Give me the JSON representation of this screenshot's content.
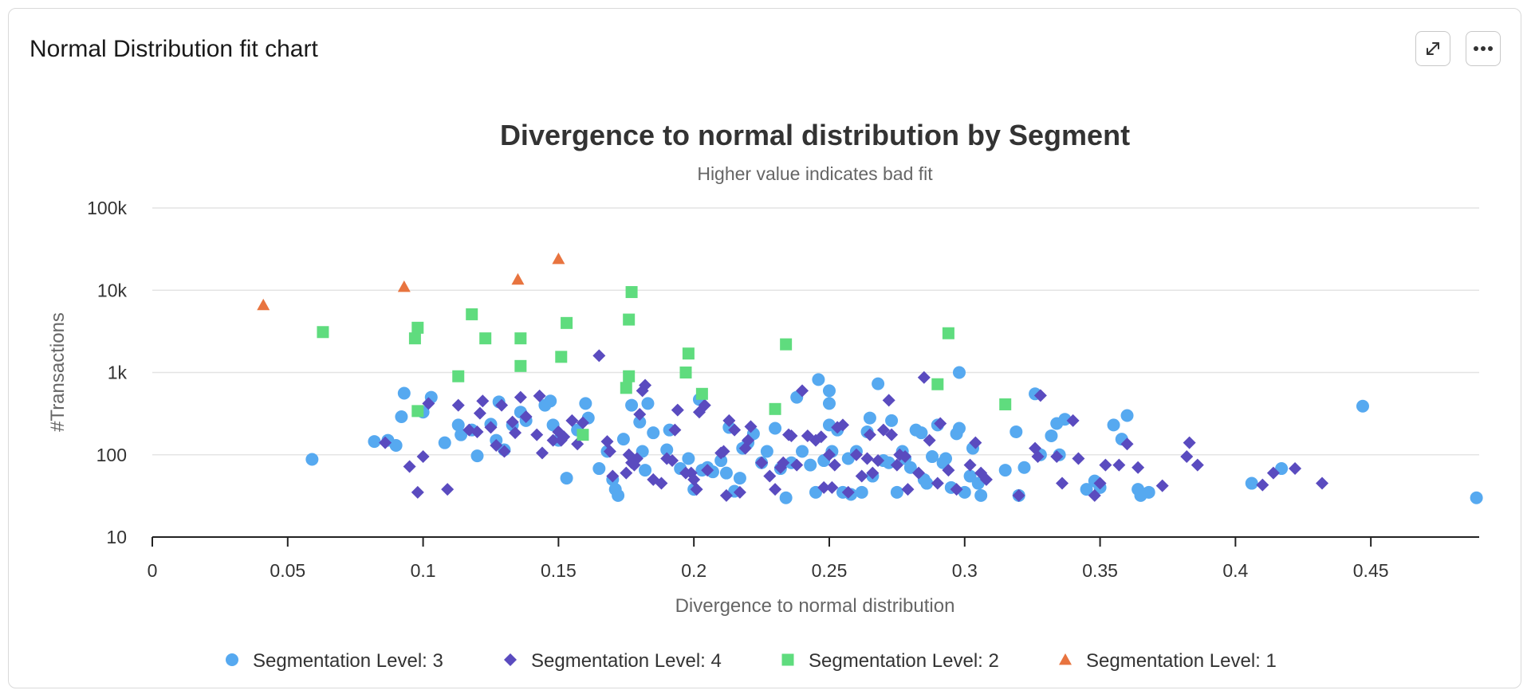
{
  "card": {
    "title": "Normal Distribution fit chart",
    "expand_icon": "expand-icon",
    "more_icon": "more-icon"
  },
  "colors": {
    "level3": "#56a9f0",
    "level4": "#5a4bbf",
    "level2": "#5fdc7e",
    "level1": "#e8743f",
    "grid": "#e4e4e4",
    "axis": "#222222"
  },
  "chart_data": {
    "type": "scatter",
    "title": "Divergence to normal distribution by Segment",
    "subtitle": "Higher value indicates bad fit",
    "xlabel": "Divergence to normal distribution",
    "ylabel": "#Transactions",
    "xlim": [
      0,
      0.49
    ],
    "ylim": [
      10,
      100000
    ],
    "yscale": "log",
    "grid": true,
    "legend_position": "bottom",
    "x_ticks": [
      {
        "value": 0,
        "label": "0"
      },
      {
        "value": 0.05,
        "label": "0.05"
      },
      {
        "value": 0.1,
        "label": "0.1"
      },
      {
        "value": 0.15,
        "label": "0.15"
      },
      {
        "value": 0.2,
        "label": "0.2"
      },
      {
        "value": 0.25,
        "label": "0.25"
      },
      {
        "value": 0.3,
        "label": "0.3"
      },
      {
        "value": 0.35,
        "label": "0.35"
      },
      {
        "value": 0.4,
        "label": "0.4"
      },
      {
        "value": 0.45,
        "label": "0.45"
      }
    ],
    "y_ticks": [
      {
        "value": 10,
        "label": "10"
      },
      {
        "value": 100,
        "label": "100"
      },
      {
        "value": 1000,
        "label": "1k"
      },
      {
        "value": 10000,
        "label": "10k"
      },
      {
        "value": 100000,
        "label": "100k"
      }
    ],
    "series": [
      {
        "name": "Segmentation Level: 3",
        "marker": "circle",
        "color": "#56a9f0",
        "points": [
          [
            0.059,
            88
          ],
          [
            0.082,
            145
          ],
          [
            0.087,
            150
          ],
          [
            0.09,
            130
          ],
          [
            0.092,
            290
          ],
          [
            0.093,
            560
          ],
          [
            0.1,
            330
          ],
          [
            0.103,
            500
          ],
          [
            0.108,
            140
          ],
          [
            0.113,
            230
          ],
          [
            0.114,
            175
          ],
          [
            0.118,
            200
          ],
          [
            0.12,
            97
          ],
          [
            0.125,
            235
          ],
          [
            0.127,
            150
          ],
          [
            0.128,
            440
          ],
          [
            0.13,
            115
          ],
          [
            0.133,
            230
          ],
          [
            0.136,
            330
          ],
          [
            0.138,
            260
          ],
          [
            0.145,
            400
          ],
          [
            0.147,
            450
          ],
          [
            0.148,
            230
          ],
          [
            0.15,
            150
          ],
          [
            0.153,
            52
          ],
          [
            0.157,
            200
          ],
          [
            0.16,
            420
          ],
          [
            0.161,
            280
          ],
          [
            0.165,
            68
          ],
          [
            0.168,
            110
          ],
          [
            0.17,
            50
          ],
          [
            0.171,
            38
          ],
          [
            0.172,
            32
          ],
          [
            0.174,
            155
          ],
          [
            0.177,
            400
          ],
          [
            0.18,
            250
          ],
          [
            0.181,
            110
          ],
          [
            0.182,
            65
          ],
          [
            0.183,
            420
          ],
          [
            0.185,
            185
          ],
          [
            0.19,
            115
          ],
          [
            0.191,
            200
          ],
          [
            0.195,
            68
          ],
          [
            0.198,
            90
          ],
          [
            0.2,
            38
          ],
          [
            0.202,
            470
          ],
          [
            0.203,
            65
          ],
          [
            0.205,
            70
          ],
          [
            0.207,
            62
          ],
          [
            0.21,
            85
          ],
          [
            0.212,
            60
          ],
          [
            0.213,
            215
          ],
          [
            0.215,
            36
          ],
          [
            0.217,
            52
          ],
          [
            0.218,
            120
          ],
          [
            0.22,
            140
          ],
          [
            0.222,
            180
          ],
          [
            0.225,
            80
          ],
          [
            0.227,
            110
          ],
          [
            0.23,
            210
          ],
          [
            0.232,
            68
          ],
          [
            0.234,
            30
          ],
          [
            0.236,
            80
          ],
          [
            0.238,
            500
          ],
          [
            0.24,
            110
          ],
          [
            0.243,
            75
          ],
          [
            0.245,
            35
          ],
          [
            0.246,
            820
          ],
          [
            0.248,
            85
          ],
          [
            0.25,
            600
          ],
          [
            0.25,
            420
          ],
          [
            0.25,
            230
          ],
          [
            0.251,
            110
          ],
          [
            0.253,
            200
          ],
          [
            0.255,
            35
          ],
          [
            0.257,
            90
          ],
          [
            0.258,
            33
          ],
          [
            0.26,
            110
          ],
          [
            0.262,
            35
          ],
          [
            0.264,
            190
          ],
          [
            0.265,
            280
          ],
          [
            0.266,
            55
          ],
          [
            0.268,
            730
          ],
          [
            0.27,
            85
          ],
          [
            0.272,
            80
          ],
          [
            0.273,
            260
          ],
          [
            0.275,
            35
          ],
          [
            0.277,
            110
          ],
          [
            0.278,
            90
          ],
          [
            0.28,
            70
          ],
          [
            0.282,
            200
          ],
          [
            0.284,
            185
          ],
          [
            0.285,
            50
          ],
          [
            0.286,
            45
          ],
          [
            0.288,
            95
          ],
          [
            0.29,
            230
          ],
          [
            0.292,
            80
          ],
          [
            0.293,
            90
          ],
          [
            0.295,
            40
          ],
          [
            0.297,
            180
          ],
          [
            0.298,
            1000
          ],
          [
            0.298,
            210
          ],
          [
            0.3,
            35
          ],
          [
            0.302,
            55
          ],
          [
            0.303,
            120
          ],
          [
            0.305,
            45
          ],
          [
            0.306,
            32
          ],
          [
            0.315,
            65
          ],
          [
            0.319,
            190
          ],
          [
            0.32,
            32
          ],
          [
            0.322,
            70
          ],
          [
            0.326,
            550
          ],
          [
            0.328,
            100
          ],
          [
            0.332,
            170
          ],
          [
            0.334,
            240
          ],
          [
            0.335,
            100
          ],
          [
            0.337,
            270
          ],
          [
            0.345,
            38
          ],
          [
            0.348,
            48
          ],
          [
            0.35,
            40
          ],
          [
            0.355,
            230
          ],
          [
            0.358,
            155
          ],
          [
            0.36,
            300
          ],
          [
            0.364,
            38
          ],
          [
            0.365,
            32
          ],
          [
            0.368,
            35
          ],
          [
            0.406,
            45
          ],
          [
            0.417,
            68
          ],
          [
            0.447,
            390
          ],
          [
            0.489,
            30
          ]
        ]
      },
      {
        "name": "Segmentation Level: 4",
        "marker": "diamond",
        "color": "#5a4bbf",
        "points": [
          [
            0.086,
            140
          ],
          [
            0.095,
            72
          ],
          [
            0.098,
            35
          ],
          [
            0.1,
            95
          ],
          [
            0.102,
            420
          ],
          [
            0.109,
            38
          ],
          [
            0.113,
            400
          ],
          [
            0.117,
            200
          ],
          [
            0.12,
            190
          ],
          [
            0.121,
            320
          ],
          [
            0.122,
            450
          ],
          [
            0.125,
            215
          ],
          [
            0.127,
            130
          ],
          [
            0.129,
            400
          ],
          [
            0.13,
            110
          ],
          [
            0.133,
            250
          ],
          [
            0.134,
            185
          ],
          [
            0.136,
            500
          ],
          [
            0.138,
            290
          ],
          [
            0.142,
            175
          ],
          [
            0.143,
            520
          ],
          [
            0.144,
            105
          ],
          [
            0.148,
            150
          ],
          [
            0.15,
            190
          ],
          [
            0.151,
            150
          ],
          [
            0.152,
            165
          ],
          [
            0.155,
            260
          ],
          [
            0.157,
            135
          ],
          [
            0.159,
            245
          ],
          [
            0.165,
            1600
          ],
          [
            0.168,
            145
          ],
          [
            0.169,
            110
          ],
          [
            0.17,
            55
          ],
          [
            0.175,
            60
          ],
          [
            0.176,
            100
          ],
          [
            0.177,
            80
          ],
          [
            0.178,
            75
          ],
          [
            0.179,
            90
          ],
          [
            0.18,
            310
          ],
          [
            0.181,
            600
          ],
          [
            0.182,
            700
          ],
          [
            0.185,
            50
          ],
          [
            0.188,
            45
          ],
          [
            0.19,
            90
          ],
          [
            0.192,
            85
          ],
          [
            0.193,
            200
          ],
          [
            0.194,
            350
          ],
          [
            0.197,
            60
          ],
          [
            0.199,
            60
          ],
          [
            0.2,
            50
          ],
          [
            0.201,
            38
          ],
          [
            0.202,
            330
          ],
          [
            0.204,
            400
          ],
          [
            0.205,
            65
          ],
          [
            0.21,
            105
          ],
          [
            0.211,
            110
          ],
          [
            0.212,
            32
          ],
          [
            0.213,
            260
          ],
          [
            0.215,
            200
          ],
          [
            0.217,
            35
          ],
          [
            0.219,
            120
          ],
          [
            0.22,
            150
          ],
          [
            0.221,
            220
          ],
          [
            0.225,
            80
          ],
          [
            0.228,
            55
          ],
          [
            0.23,
            38
          ],
          [
            0.232,
            70
          ],
          [
            0.233,
            80
          ],
          [
            0.235,
            175
          ],
          [
            0.236,
            170
          ],
          [
            0.238,
            75
          ],
          [
            0.24,
            600
          ],
          [
            0.242,
            170
          ],
          [
            0.245,
            150
          ],
          [
            0.247,
            165
          ],
          [
            0.248,
            40
          ],
          [
            0.25,
            100
          ],
          [
            0.251,
            40
          ],
          [
            0.252,
            75
          ],
          [
            0.253,
            215
          ],
          [
            0.255,
            230
          ],
          [
            0.257,
            35
          ],
          [
            0.26,
            100
          ],
          [
            0.262,
            55
          ],
          [
            0.264,
            90
          ],
          [
            0.265,
            175
          ],
          [
            0.266,
            60
          ],
          [
            0.268,
            85
          ],
          [
            0.27,
            200
          ],
          [
            0.272,
            460
          ],
          [
            0.273,
            175
          ],
          [
            0.275,
            75
          ],
          [
            0.276,
            100
          ],
          [
            0.278,
            95
          ],
          [
            0.279,
            38
          ],
          [
            0.283,
            60
          ],
          [
            0.285,
            870
          ],
          [
            0.287,
            150
          ],
          [
            0.29,
            45
          ],
          [
            0.291,
            240
          ],
          [
            0.294,
            65
          ],
          [
            0.297,
            38
          ],
          [
            0.302,
            75
          ],
          [
            0.304,
            140
          ],
          [
            0.306,
            60
          ],
          [
            0.308,
            50
          ],
          [
            0.32,
            32
          ],
          [
            0.326,
            120
          ],
          [
            0.327,
            95
          ],
          [
            0.328,
            525
          ],
          [
            0.334,
            95
          ],
          [
            0.336,
            45
          ],
          [
            0.34,
            260
          ],
          [
            0.342,
            90
          ],
          [
            0.348,
            32
          ],
          [
            0.35,
            45
          ],
          [
            0.352,
            75
          ],
          [
            0.357,
            75
          ],
          [
            0.36,
            135
          ],
          [
            0.364,
            70
          ],
          [
            0.373,
            42
          ],
          [
            0.382,
            95
          ],
          [
            0.383,
            140
          ],
          [
            0.386,
            75
          ],
          [
            0.41,
            43
          ],
          [
            0.414,
            60
          ],
          [
            0.422,
            68
          ],
          [
            0.432,
            45
          ]
        ]
      },
      {
        "name": "Segmentation Level: 2",
        "marker": "square",
        "color": "#5fdc7e",
        "points": [
          [
            0.063,
            3100
          ],
          [
            0.097,
            2600
          ],
          [
            0.098,
            3500
          ],
          [
            0.098,
            340
          ],
          [
            0.113,
            900
          ],
          [
            0.118,
            5100
          ],
          [
            0.123,
            2600
          ],
          [
            0.136,
            2600
          ],
          [
            0.136,
            1200
          ],
          [
            0.151,
            1550
          ],
          [
            0.153,
            4000
          ],
          [
            0.159,
            175
          ],
          [
            0.175,
            650
          ],
          [
            0.176,
            900
          ],
          [
            0.176,
            4400
          ],
          [
            0.177,
            9500
          ],
          [
            0.197,
            1000
          ],
          [
            0.198,
            1700
          ],
          [
            0.203,
            550
          ],
          [
            0.23,
            360
          ],
          [
            0.234,
            2200
          ],
          [
            0.29,
            720
          ],
          [
            0.294,
            3000
          ],
          [
            0.315,
            410
          ]
        ]
      },
      {
        "name": "Segmentation Level: 1",
        "marker": "triangle",
        "color": "#e8743f",
        "points": [
          [
            0.041,
            6600
          ],
          [
            0.093,
            11000
          ],
          [
            0.135,
            13500
          ],
          [
            0.15,
            24000
          ]
        ]
      }
    ]
  }
}
